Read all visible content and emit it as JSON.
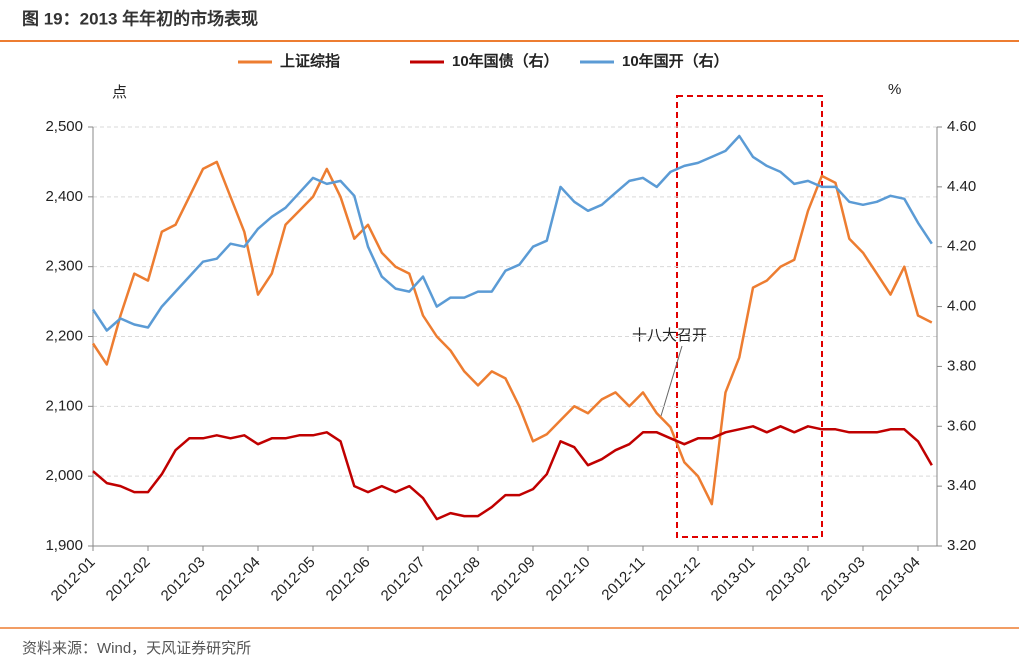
{
  "chart_data": {
    "type": "line",
    "title": "图 19：2013 年年初的市场表现",
    "source": "资料来源：Wind，天风证券研究所",
    "y_label": "点",
    "y2_label": "%",
    "annotation": "十八大召开",
    "categories": [
      "2012-01",
      null,
      null,
      null,
      "2012-02",
      null,
      null,
      null,
      "2012-03",
      null,
      null,
      null,
      "2012-04",
      null,
      null,
      null,
      "2012-05",
      null,
      null,
      null,
      "2012-06",
      null,
      null,
      null,
      "2012-07",
      null,
      null,
      null,
      "2012-08",
      null,
      null,
      null,
      "2012-09",
      null,
      null,
      null,
      "2012-10",
      null,
      null,
      null,
      "2012-11",
      null,
      null,
      null,
      "2012-12",
      null,
      null,
      null,
      "2013-01",
      null,
      null,
      null,
      "2013-02",
      null,
      null,
      null,
      "2013-03",
      null,
      null,
      null,
      "2013-04",
      null
    ],
    "ylim": [
      1900,
      2500
    ],
    "yticks": [
      {
        "value": 1900,
        "label": "1,900"
      },
      {
        "value": 2000,
        "label": "2,000"
      },
      {
        "value": 2100,
        "label": "2,100"
      },
      {
        "value": 2200,
        "label": "2,200"
      },
      {
        "value": 2300,
        "label": "2,300"
      },
      {
        "value": 2400,
        "label": "2,400"
      },
      {
        "value": 2500,
        "label": "2,500"
      }
    ],
    "y2lim": [
      3.2,
      4.6
    ],
    "y2ticks": [
      {
        "value": 3.2,
        "label": "3.20"
      },
      {
        "value": 3.4,
        "label": "3.40"
      },
      {
        "value": 3.6,
        "label": "3.60"
      },
      {
        "value": 3.8,
        "label": "3.80"
      },
      {
        "value": 4.0,
        "label": "4.00"
      },
      {
        "value": 4.2,
        "label": "4.20"
      },
      {
        "value": 4.4,
        "label": "4.40"
      },
      {
        "value": 4.6,
        "label": "4.60"
      }
    ],
    "grid": true,
    "series": [
      {
        "name": "上证综指",
        "color": "#ed7d31",
        "values": [
          2190,
          2160,
          2230,
          2290,
          2280,
          2350,
          2360,
          2400,
          2440,
          2450,
          2400,
          2350,
          2260,
          2290,
          2360,
          2380,
          2400,
          2440,
          2400,
          2340,
          2360,
          2320,
          2300,
          2290,
          2230,
          2200,
          2180,
          2150,
          2130,
          2150,
          2140,
          2100,
          2050,
          2060,
          2080,
          2100,
          2090,
          2110,
          2120,
          2100,
          2120,
          2090,
          2070,
          2020,
          2000,
          1960,
          2120,
          2170,
          2270,
          2280,
          2300,
          2310,
          2380,
          2430,
          2420,
          2340,
          2320,
          2290,
          2260,
          2300,
          2230,
          2220
        ]
      },
      {
        "name": "10年国债（右）",
        "color": "#c00000",
        "axis": "y2",
        "values": [
          3.45,
          3.41,
          3.4,
          3.38,
          3.38,
          3.44,
          3.52,
          3.56,
          3.56,
          3.57,
          3.56,
          3.57,
          3.54,
          3.56,
          3.56,
          3.57,
          3.57,
          3.58,
          3.55,
          3.4,
          3.38,
          3.4,
          3.38,
          3.4,
          3.36,
          3.29,
          3.31,
          3.3,
          3.3,
          3.33,
          3.37,
          3.37,
          3.39,
          3.44,
          3.55,
          3.53,
          3.47,
          3.49,
          3.52,
          3.54,
          3.58,
          3.58,
          3.56,
          3.54,
          3.56,
          3.56,
          3.58,
          3.59,
          3.6,
          3.58,
          3.6,
          3.58,
          3.6,
          3.59,
          3.59,
          3.58,
          3.58,
          3.58,
          3.59,
          3.59,
          3.55,
          3.47
        ]
      },
      {
        "name": "10年国开（右）",
        "color": "#5b9bd5",
        "axis": "y2",
        "values": [
          3.99,
          3.92,
          3.96,
          3.94,
          3.93,
          4.0,
          4.05,
          4.1,
          4.15,
          4.16,
          4.21,
          4.2,
          4.26,
          4.3,
          4.33,
          4.38,
          4.43,
          4.41,
          4.42,
          4.37,
          4.2,
          4.1,
          4.06,
          4.05,
          4.1,
          4.0,
          4.03,
          4.03,
          4.05,
          4.05,
          4.12,
          4.14,
          4.2,
          4.22,
          4.4,
          4.35,
          4.32,
          4.34,
          4.38,
          4.42,
          4.43,
          4.4,
          4.45,
          4.47,
          4.48,
          4.5,
          4.52,
          4.57,
          4.5,
          4.47,
          4.45,
          4.41,
          4.42,
          4.4,
          4.4,
          4.35,
          4.34,
          4.35,
          4.37,
          4.36,
          4.28,
          4.21
        ]
      }
    ]
  }
}
